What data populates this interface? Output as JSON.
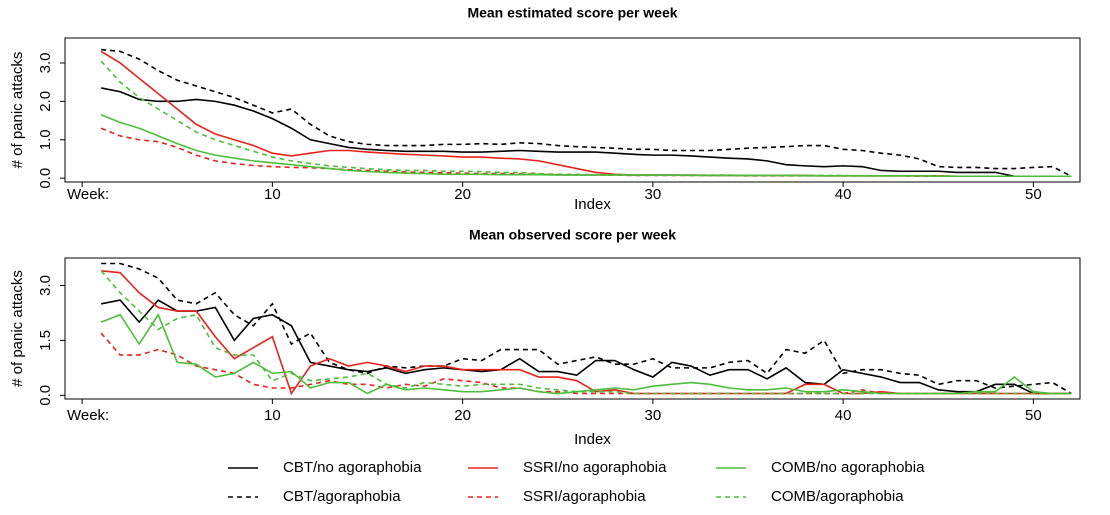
{
  "chart_data": [
    {
      "type": "line",
      "title": "Mean estimated score per week",
      "xlabel": "Index",
      "ylabel": "# of panic attacks",
      "x": [
        1,
        2,
        3,
        4,
        5,
        6,
        7,
        8,
        9,
        10,
        11,
        12,
        13,
        14,
        15,
        16,
        17,
        18,
        19,
        20,
        21,
        22,
        23,
        24,
        25,
        26,
        27,
        28,
        29,
        30,
        31,
        32,
        33,
        34,
        35,
        36,
        37,
        38,
        39,
        40,
        41,
        42,
        43,
        44,
        45,
        46,
        47,
        48,
        49,
        50,
        51,
        52
      ],
      "xlim": [
        -0.9,
        52.45
      ],
      "ylim": [
        -0.1,
        3.65
      ],
      "xticks": [
        {
          "value": 0,
          "label": "Week:"
        },
        10,
        20,
        30,
        40,
        50
      ],
      "yticks": [
        {
          "value": 0,
          "label": "0.0"
        },
        {
          "value": 1,
          "label": "1.0"
        },
        {
          "value": 2,
          "label": "2.0"
        },
        {
          "value": 3,
          "label": "3.0"
        }
      ],
      "series": [
        {
          "color": "#000000",
          "dash": "solid",
          "values": [
            2.35,
            2.25,
            2.05,
            2.0,
            2.0,
            2.05,
            2.0,
            1.9,
            1.75,
            1.55,
            1.3,
            1.0,
            0.9,
            0.8,
            0.75,
            0.72,
            0.7,
            0.7,
            0.7,
            0.68,
            0.68,
            0.7,
            0.72,
            0.7,
            0.68,
            0.68,
            0.68,
            0.65,
            0.62,
            0.6,
            0.6,
            0.58,
            0.55,
            0.52,
            0.5,
            0.45,
            0.35,
            0.32,
            0.3,
            0.32,
            0.3,
            0.2,
            0.18,
            0.18,
            0.18,
            0.15,
            0.15,
            0.15,
            0.05,
            0.05,
            0.05,
            0.05
          ]
        },
        {
          "color": "#000000",
          "dash": "dashed",
          "values": [
            3.35,
            3.3,
            3.1,
            2.8,
            2.55,
            2.4,
            2.25,
            2.1,
            1.9,
            1.7,
            1.8,
            1.4,
            1.1,
            0.95,
            0.88,
            0.85,
            0.85,
            0.85,
            0.88,
            0.88,
            0.9,
            0.88,
            0.92,
            0.9,
            0.85,
            0.82,
            0.8,
            0.78,
            0.75,
            0.75,
            0.72,
            0.72,
            0.72,
            0.75,
            0.78,
            0.8,
            0.82,
            0.85,
            0.85,
            0.75,
            0.72,
            0.65,
            0.6,
            0.5,
            0.3,
            0.28,
            0.28,
            0.25,
            0.25,
            0.28,
            0.3,
            0.05
          ]
        },
        {
          "color": "#e8231c",
          "dash": "solid",
          "values": [
            3.3,
            3.0,
            2.6,
            2.2,
            1.8,
            1.4,
            1.15,
            1.0,
            0.85,
            0.65,
            0.58,
            0.65,
            0.72,
            0.72,
            0.68,
            0.65,
            0.62,
            0.6,
            0.58,
            0.55,
            0.55,
            0.52,
            0.5,
            0.45,
            0.35,
            0.25,
            0.15,
            0.1,
            0.08,
            0.08,
            0.08,
            0.08,
            0.07,
            0.07,
            0.07,
            0.07,
            0.07,
            0.07,
            0.06,
            0.06,
            0.06,
            0.06,
            0.06,
            0.06,
            0.06,
            0.05,
            0.05,
            0.05,
            0.05,
            0.05,
            0.05,
            0.05
          ]
        },
        {
          "color": "#e8231c",
          "dash": "dashed",
          "values": [
            1.3,
            1.1,
            1.0,
            0.95,
            0.8,
            0.6,
            0.45,
            0.38,
            0.33,
            0.3,
            0.28,
            0.27,
            0.25,
            0.22,
            0.2,
            0.18,
            0.16,
            0.15,
            0.14,
            0.13,
            0.12,
            0.12,
            0.11,
            0.1,
            0.09,
            0.08,
            0.08,
            0.08,
            0.07,
            0.07,
            0.07,
            0.07,
            0.07,
            0.07,
            0.06,
            0.06,
            0.06,
            0.06,
            0.06,
            0.06,
            0.06,
            0.06,
            0.06,
            0.05,
            0.05,
            0.05,
            0.05,
            0.05,
            0.05,
            0.05,
            0.05,
            0.05
          ]
        },
        {
          "color": "#4dbe3c",
          "dash": "solid",
          "values": [
            1.65,
            1.45,
            1.3,
            1.1,
            0.9,
            0.72,
            0.6,
            0.52,
            0.45,
            0.4,
            0.35,
            0.3,
            0.25,
            0.2,
            0.17,
            0.15,
            0.13,
            0.12,
            0.1,
            0.1,
            0.1,
            0.09,
            0.09,
            0.09,
            0.08,
            0.08,
            0.08,
            0.08,
            0.08,
            0.08,
            0.08,
            0.07,
            0.07,
            0.07,
            0.07,
            0.07,
            0.07,
            0.06,
            0.06,
            0.06,
            0.06,
            0.06,
            0.06,
            0.06,
            0.05,
            0.05,
            0.05,
            0.05,
            0.05,
            0.05,
            0.05,
            0.05
          ]
        },
        {
          "color": "#4dbe3c",
          "dash": "dashed",
          "values": [
            3.05,
            2.5,
            2.1,
            1.8,
            1.5,
            1.2,
            1.0,
            0.85,
            0.7,
            0.55,
            0.45,
            0.38,
            0.32,
            0.28,
            0.25,
            0.22,
            0.2,
            0.2,
            0.18,
            0.18,
            0.17,
            0.15,
            0.15,
            0.12,
            0.1,
            0.1,
            0.09,
            0.09,
            0.09,
            0.08,
            0.08,
            0.08,
            0.08,
            0.08,
            0.07,
            0.07,
            0.07,
            0.07,
            0.07,
            0.07,
            0.06,
            0.06,
            0.06,
            0.06,
            0.06,
            0.05,
            0.05,
            0.05,
            0.05,
            0.05,
            0.05,
            0.05
          ]
        }
      ]
    },
    {
      "type": "line",
      "title": "Mean observed score per week",
      "xlabel": "Index",
      "ylabel": "# of panic attacks",
      "x": [
        1,
        2,
        3,
        4,
        5,
        6,
        7,
        8,
        9,
        10,
        11,
        12,
        13,
        14,
        15,
        16,
        17,
        18,
        19,
        20,
        21,
        22,
        23,
        24,
        25,
        26,
        27,
        28,
        29,
        30,
        31,
        32,
        33,
        34,
        35,
        36,
        37,
        38,
        39,
        40,
        41,
        42,
        43,
        44,
        45,
        46,
        47,
        48,
        49,
        50,
        51,
        52
      ],
      "xlim": [
        -0.9,
        52.45
      ],
      "ylim": [
        -0.1,
        3.75
      ],
      "xticks": [
        {
          "value": 0,
          "label": "Week:"
        },
        10,
        20,
        30,
        40,
        50
      ],
      "yticks": [
        {
          "value": 0,
          "label": "0.0"
        },
        1.5,
        {
          "value": 3,
          "label": "3.0"
        }
      ],
      "legend": "bottom",
      "series": [
        {
          "name": "CBT/no agoraphobia",
          "color": "#000000",
          "dash": "solid",
          "values": [
            2.5,
            2.6,
            2.0,
            2.6,
            2.3,
            2.3,
            2.4,
            1.5,
            2.1,
            2.2,
            1.9,
            0.9,
            0.8,
            0.7,
            0.65,
            0.75,
            0.6,
            0.7,
            0.75,
            0.7,
            0.65,
            0.7,
            1.0,
            0.65,
            0.65,
            0.55,
            0.95,
            0.95,
            0.7,
            0.5,
            0.9,
            0.8,
            0.55,
            0.7,
            0.7,
            0.45,
            0.75,
            0.35,
            0.3,
            0.7,
            0.6,
            0.5,
            0.35,
            0.35,
            0.15,
            0.1,
            0.1,
            0.3,
            0.3,
            0.05,
            0.05,
            0.05
          ]
        },
        {
          "name": "CBT/agoraphobia",
          "color": "#000000",
          "dash": "dashed",
          "values": [
            3.6,
            3.6,
            3.45,
            3.2,
            2.6,
            2.5,
            2.8,
            2.2,
            1.9,
            2.5,
            1.4,
            1.7,
            0.9,
            0.7,
            0.6,
            0.8,
            0.75,
            0.8,
            0.8,
            1.0,
            0.95,
            1.25,
            1.25,
            1.25,
            0.85,
            0.95,
            1.05,
            0.85,
            0.85,
            1.0,
            0.75,
            0.75,
            0.75,
            0.9,
            0.95,
            0.6,
            1.25,
            1.15,
            1.5,
            0.6,
            0.7,
            0.7,
            0.6,
            0.55,
            0.3,
            0.4,
            0.4,
            0.2,
            0.25,
            0.3,
            0.35,
            0.05
          ]
        },
        {
          "name": "SSRI/no agoraphobia",
          "color": "#e8231c",
          "dash": "solid",
          "values": [
            3.4,
            3.35,
            2.8,
            2.4,
            2.3,
            2.3,
            1.6,
            1.0,
            1.3,
            1.6,
            0.05,
            0.8,
            1.0,
            0.8,
            0.9,
            0.8,
            0.65,
            0.8,
            0.8,
            0.7,
            0.7,
            0.7,
            0.7,
            0.5,
            0.5,
            0.4,
            0.1,
            0.15,
            0.05,
            0.05,
            0.05,
            0.05,
            0.05,
            0.05,
            0.05,
            0.05,
            0.05,
            0.3,
            0.3,
            0.05,
            0.05,
            0.1,
            0.05,
            0.05,
            0.05,
            0.05,
            0.05,
            0.05,
            0.05,
            0.05,
            0.05,
            0.05
          ]
        },
        {
          "name": "SSRI/agoraphobia",
          "color": "#e8231c",
          "dash": "dashed",
          "values": [
            1.7,
            1.1,
            1.1,
            1.25,
            1.1,
            0.8,
            0.7,
            0.6,
            0.3,
            0.2,
            0.2,
            0.3,
            0.4,
            0.3,
            0.3,
            0.2,
            0.3,
            0.25,
            0.45,
            0.4,
            0.35,
            0.2,
            0.2,
            0.1,
            0.1,
            0.05,
            0.05,
            0.05,
            0.05,
            0.05,
            0.05,
            0.05,
            0.05,
            0.05,
            0.05,
            0.05,
            0.05,
            0.05,
            0.05,
            0.05,
            0.15,
            0.05,
            0.05,
            0.05,
            0.05,
            0.05,
            0.05,
            0.05,
            0.05,
            0.05,
            0.05,
            0.05
          ]
        },
        {
          "name": "COMB/no agoraphobia",
          "color": "#4dbe3c",
          "dash": "solid",
          "values": [
            2.0,
            2.2,
            1.4,
            2.2,
            0.9,
            0.85,
            0.5,
            0.6,
            0.9,
            0.6,
            0.65,
            0.2,
            0.35,
            0.35,
            0.05,
            0.3,
            0.15,
            0.2,
            0.15,
            0.1,
            0.1,
            0.15,
            0.2,
            0.1,
            0.05,
            0.1,
            0.15,
            0.2,
            0.15,
            0.25,
            0.3,
            0.35,
            0.3,
            0.2,
            0.15,
            0.15,
            0.2,
            0.1,
            0.1,
            0.15,
            0.1,
            0.05,
            0.05,
            0.05,
            0.05,
            0.05,
            0.1,
            0.1,
            0.5,
            0.1,
            0.05,
            0.05
          ]
        },
        {
          "name": "COMB/agoraphobia",
          "color": "#4dbe3c",
          "dash": "dashed",
          "values": [
            3.4,
            2.8,
            2.3,
            1.8,
            2.1,
            2.2,
            1.3,
            1.1,
            1.1,
            0.4,
            0.6,
            0.4,
            0.45,
            0.5,
            0.6,
            0.3,
            0.2,
            0.35,
            0.3,
            0.25,
            0.3,
            0.3,
            0.3,
            0.2,
            0.15,
            0.1,
            0.1,
            0.1,
            0.05,
            0.05,
            0.05,
            0.05,
            0.05,
            0.05,
            0.05,
            0.05,
            0.05,
            0.05,
            0.05,
            0.05,
            0.05,
            0.05,
            0.05,
            0.05,
            0.05,
            0.05,
            0.05,
            0.05,
            0.05,
            0.05,
            0.05,
            0.05
          ]
        }
      ]
    }
  ]
}
